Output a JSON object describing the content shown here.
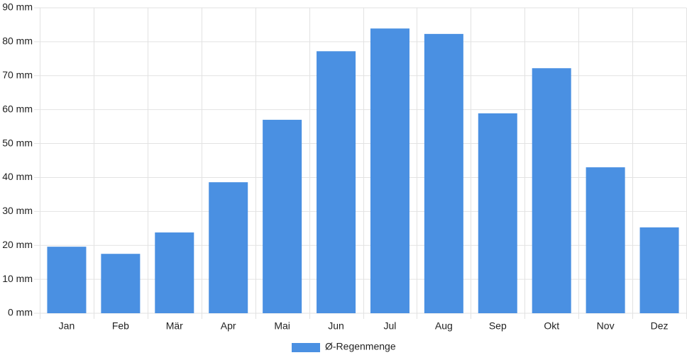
{
  "chart_data": {
    "type": "bar",
    "categories": [
      "Jan",
      "Feb",
      "Mär",
      "Apr",
      "Mai",
      "Jun",
      "Jul",
      "Aug",
      "Sep",
      "Okt",
      "Nov",
      "Dez"
    ],
    "series": [
      {
        "name": "Ø-Regenmenge",
        "color": "#4a90e2",
        "values": [
          19.6,
          17.5,
          23.8,
          38.6,
          57.0,
          77.2,
          83.9,
          82.3,
          58.9,
          72.2,
          43.0,
          25.3
        ]
      }
    ],
    "ylim": [
      0,
      90
    ],
    "yticks": [
      {
        "value": 0,
        "label": "0 mm"
      },
      {
        "value": 10,
        "label": "10 mm"
      },
      {
        "value": 20,
        "label": "20 mm"
      },
      {
        "value": 30,
        "label": "30 mm"
      },
      {
        "value": 40,
        "label": "40 mm"
      },
      {
        "value": 50,
        "label": "50 mm"
      },
      {
        "value": 60,
        "label": "60 mm"
      },
      {
        "value": 70,
        "label": "70 mm"
      },
      {
        "value": 80,
        "label": "80 mm"
      },
      {
        "value": 90,
        "label": "90 mm"
      }
    ],
    "grid": true,
    "legend": "bottom"
  }
}
